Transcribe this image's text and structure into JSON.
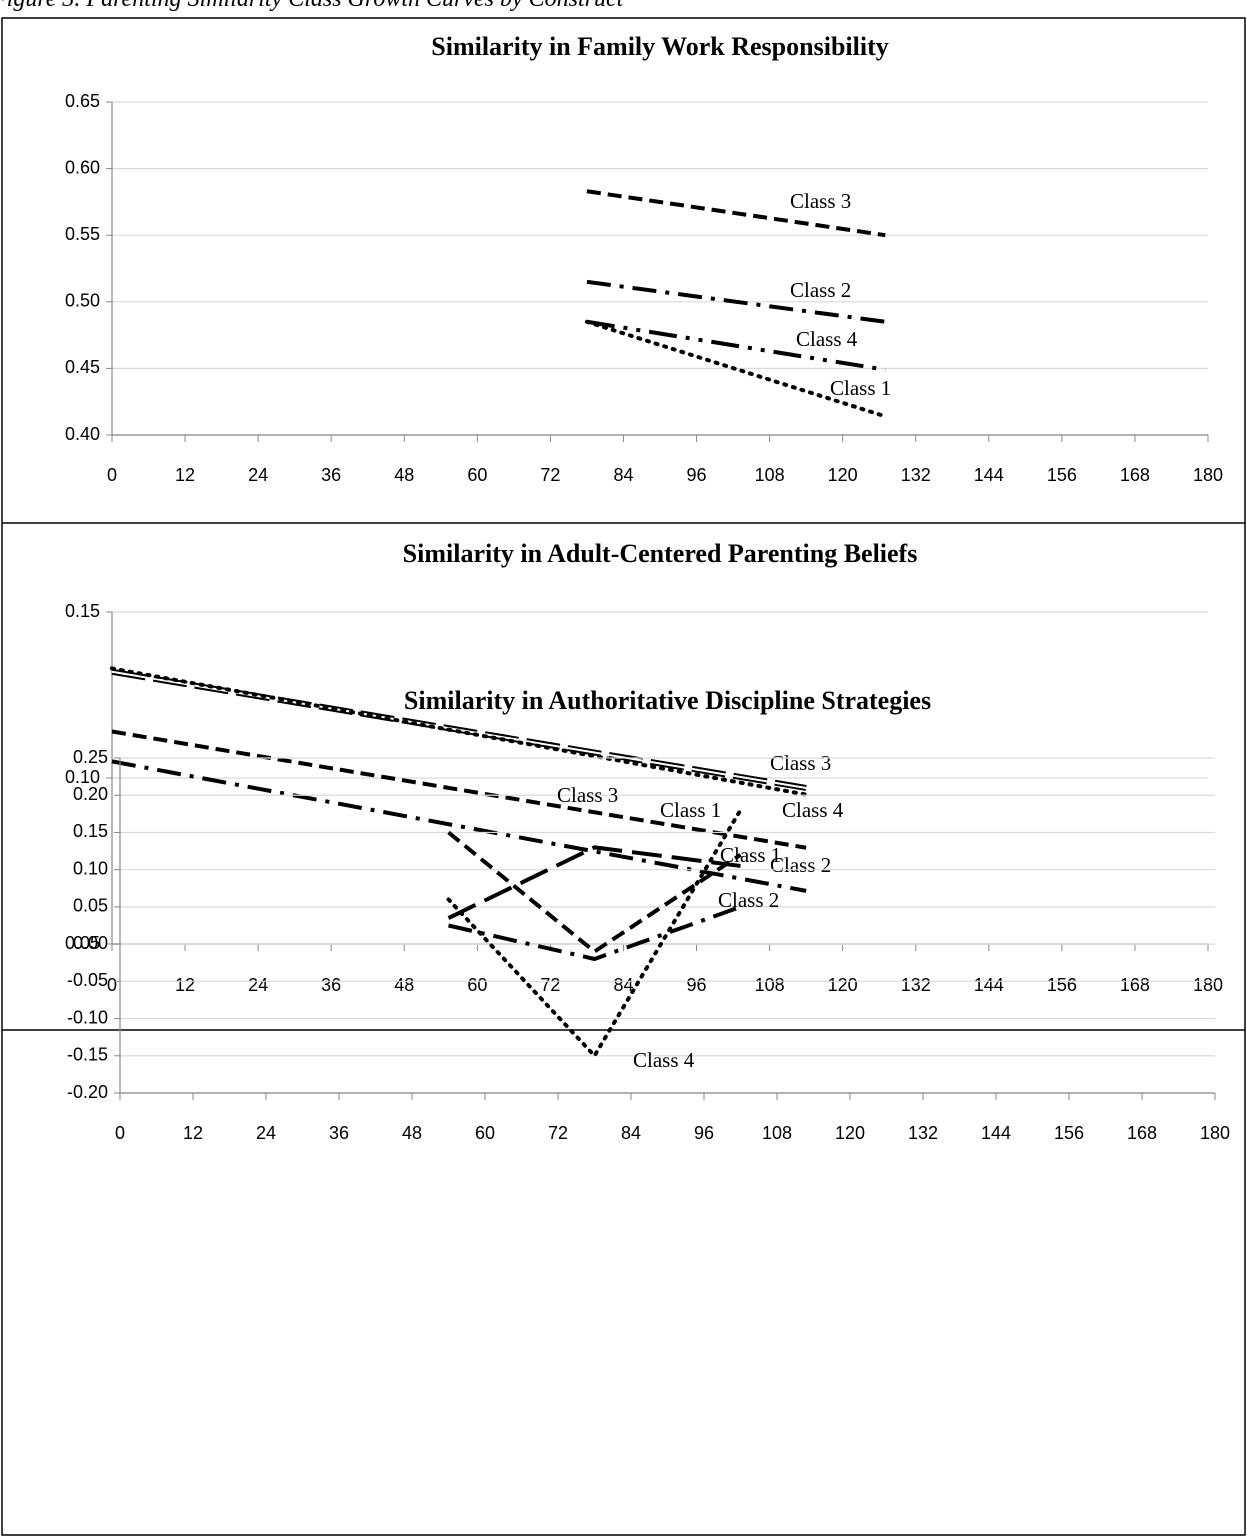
{
  "caption": "Figure 3. Parenting Similarity Class Growth Curves by Construct",
  "chart_data": [
    {
      "type": "line",
      "title": "Similarity in Family Work Responsibility",
      "x": [
        78,
        127
      ],
      "series": [
        {
          "name": "Class 3",
          "color": "#000000",
          "dash": "short-dash",
          "values": [
            0.583,
            0.55
          ]
        },
        {
          "name": "Class 2",
          "color": "#000000",
          "dash": "dash-dot",
          "values": [
            0.515,
            0.485
          ]
        },
        {
          "name": "Class 4",
          "color": "#000000",
          "dash": "long-dash-dot-dot",
          "values": [
            0.485,
            0.449
          ]
        },
        {
          "name": "Class 1",
          "color": "#000000",
          "dash": "dot",
          "values": [
            0.485,
            0.414
          ]
        }
      ],
      "xlim": [
        0,
        180
      ],
      "xticks": [
        0,
        12,
        24,
        36,
        48,
        60,
        72,
        84,
        96,
        108,
        120,
        132,
        144,
        156,
        168,
        180
      ],
      "ylim": [
        0.4,
        0.65
      ],
      "yticks": [
        {
          "value": 0.4,
          "label": "0.40"
        },
        0.45,
        {
          "value": 0.5,
          "label": "0.50"
        },
        0.55,
        {
          "value": 0.6,
          "label": "0.60"
        },
        0.65
      ],
      "grid": true
    },
    {
      "type": "line",
      "title": "Similarity in Adult-Centered Parenting Beliefs",
      "x": [
        0,
        114
      ],
      "series": [
        {
          "name": "Class 3",
          "color": "#000000",
          "dash": "double",
          "values": [
            0.132,
            0.097
          ]
        },
        {
          "name": "Class 4",
          "color": "#000000",
          "dash": "dot",
          "values": [
            0.133,
            0.095
          ]
        },
        {
          "name": "Class 1",
          "color": "#000000",
          "dash": "short-dash",
          "values": [
            0.114,
            0.079
          ]
        },
        {
          "name": "Class 2",
          "color": "#000000",
          "dash": "dash-dot",
          "values": [
            0.105,
            0.066
          ]
        }
      ],
      "xlim": [
        0,
        180
      ],
      "xticks": [
        0,
        12,
        24,
        36,
        48,
        60,
        72,
        84,
        96,
        108,
        120,
        132,
        144,
        156,
        168,
        180
      ],
      "ylim": [
        0.05,
        0.15
      ],
      "yticks": [
        0.05,
        {
          "value": 0.1,
          "label": "0.10"
        },
        0.15
      ],
      "grid": true
    },
    {
      "type": "line",
      "title": "Similarity in Authoritative Discipline Strategies",
      "x": [
        54,
        78,
        102
      ],
      "series": [
        {
          "name": "Class 3",
          "color": "#000000",
          "dash": "long-dash",
          "values": [
            0.035,
            0.13,
            0.105
          ]
        },
        {
          "name": "Class 1",
          "color": "#000000",
          "dash": "short-dash",
          "values": [
            0.15,
            -0.01,
            0.12
          ]
        },
        {
          "name": "Class 2",
          "color": "#000000",
          "dash": "dash-dot",
          "values": [
            0.025,
            -0.02,
            0.05
          ]
        },
        {
          "name": "Class 4",
          "color": "#000000",
          "dash": "dot",
          "values": [
            0.06,
            -0.15,
            0.18
          ]
        }
      ],
      "xlim": [
        0,
        180
      ],
      "xticks": [
        0,
        12,
        24,
        36,
        48,
        60,
        72,
        84,
        96,
        108,
        120,
        132,
        144,
        156,
        168,
        180
      ],
      "ylim": [
        -0.2,
        0.25
      ],
      "yticks": [
        {
          "value": -0.2,
          "label": "-0.20"
        },
        -0.15,
        {
          "value": -0.1,
          "label": "-0.10"
        },
        -0.05,
        {
          "value": 0,
          "label": "0.00"
        },
        0.05,
        {
          "value": 0.1,
          "label": "0.10"
        },
        0.15,
        {
          "value": 0.2,
          "label": "0.20"
        },
        0.25
      ],
      "grid": true
    }
  ]
}
